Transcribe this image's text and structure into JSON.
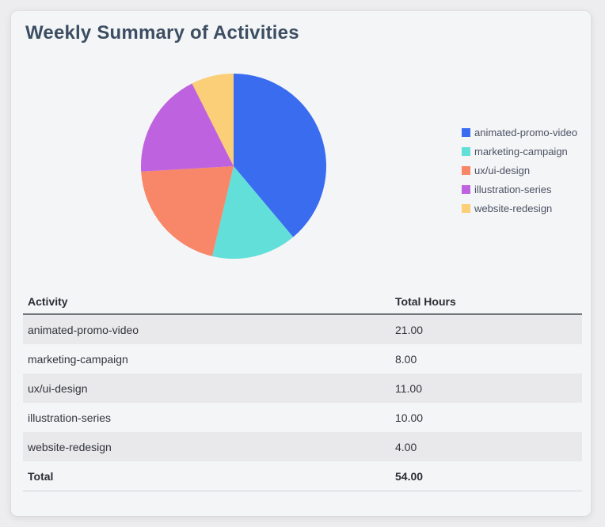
{
  "page": {
    "title": "Weekly Summary of Activities"
  },
  "colors": {
    "page_bg": "#EDEDEF",
    "card_bg": "#F4F5F7",
    "title_text": "#3D4E63",
    "legend_text": "#4A5162",
    "table_text": "#33353D",
    "zebra_row_bg": "#E9E9EB"
  },
  "chart_data": {
    "type": "pie",
    "title": "",
    "categories": [
      "animated-promo-video",
      "marketing-campaign",
      "ux/ui-design",
      "illustration-series",
      "website-redesign"
    ],
    "values": [
      21,
      8,
      11,
      10,
      4
    ],
    "total": 54,
    "colors": [
      "#3A6CF0",
      "#63DFD9",
      "#F78768",
      "#BF62DF",
      "#FBCE78"
    ],
    "start_angle_deg": 0,
    "direction": "clockwise",
    "legend_position": "right"
  },
  "table": {
    "headers": [
      "Activity",
      "Total Hours"
    ],
    "rows": [
      {
        "activity": "animated-promo-video",
        "hours": "21.00"
      },
      {
        "activity": "marketing-campaign",
        "hours": "8.00"
      },
      {
        "activity": "ux/ui-design",
        "hours": "11.00"
      },
      {
        "activity": "illustration-series",
        "hours": "10.00"
      },
      {
        "activity": "website-redesign",
        "hours": "4.00"
      }
    ],
    "total_row": {
      "label": "Total",
      "hours": "54.00"
    }
  }
}
